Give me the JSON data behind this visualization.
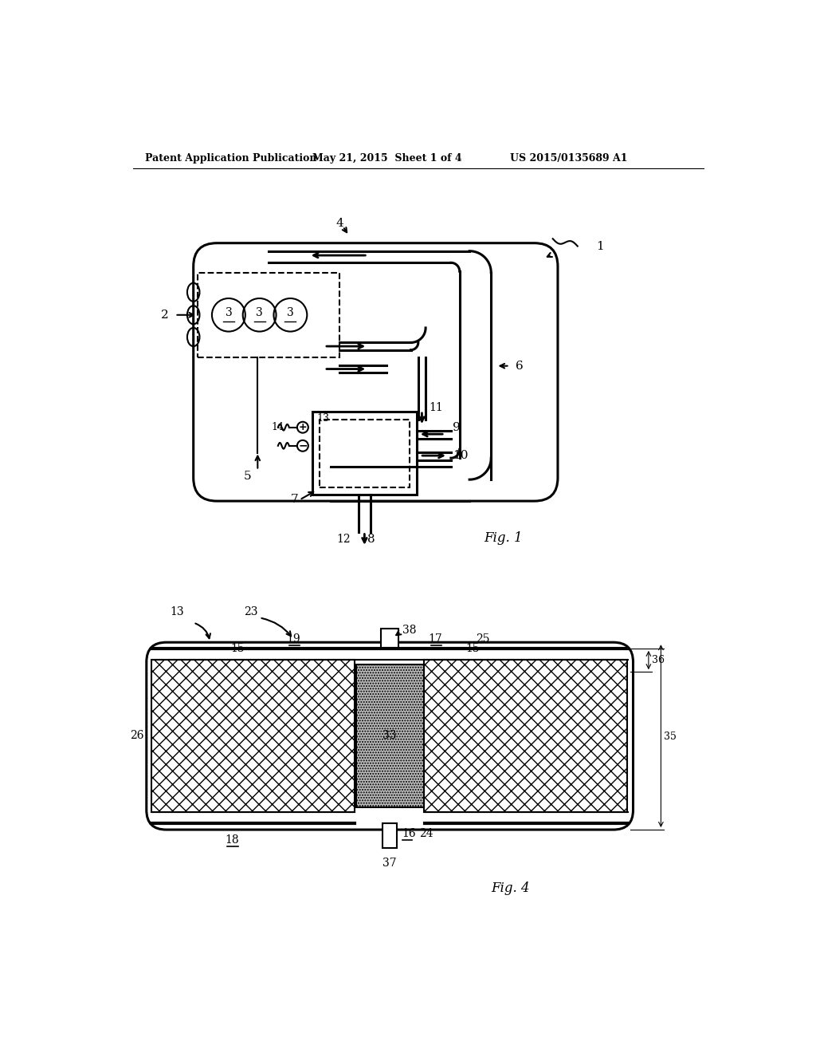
{
  "background_color": "#ffffff",
  "header_left": "Patent Application Publication",
  "header_center": "May 21, 2015  Sheet 1 of 4",
  "header_right": "US 2015/0135689 A1",
  "fig1_label": "Fig. 1",
  "fig4_label": "Fig. 4",
  "line_color": "#000000"
}
